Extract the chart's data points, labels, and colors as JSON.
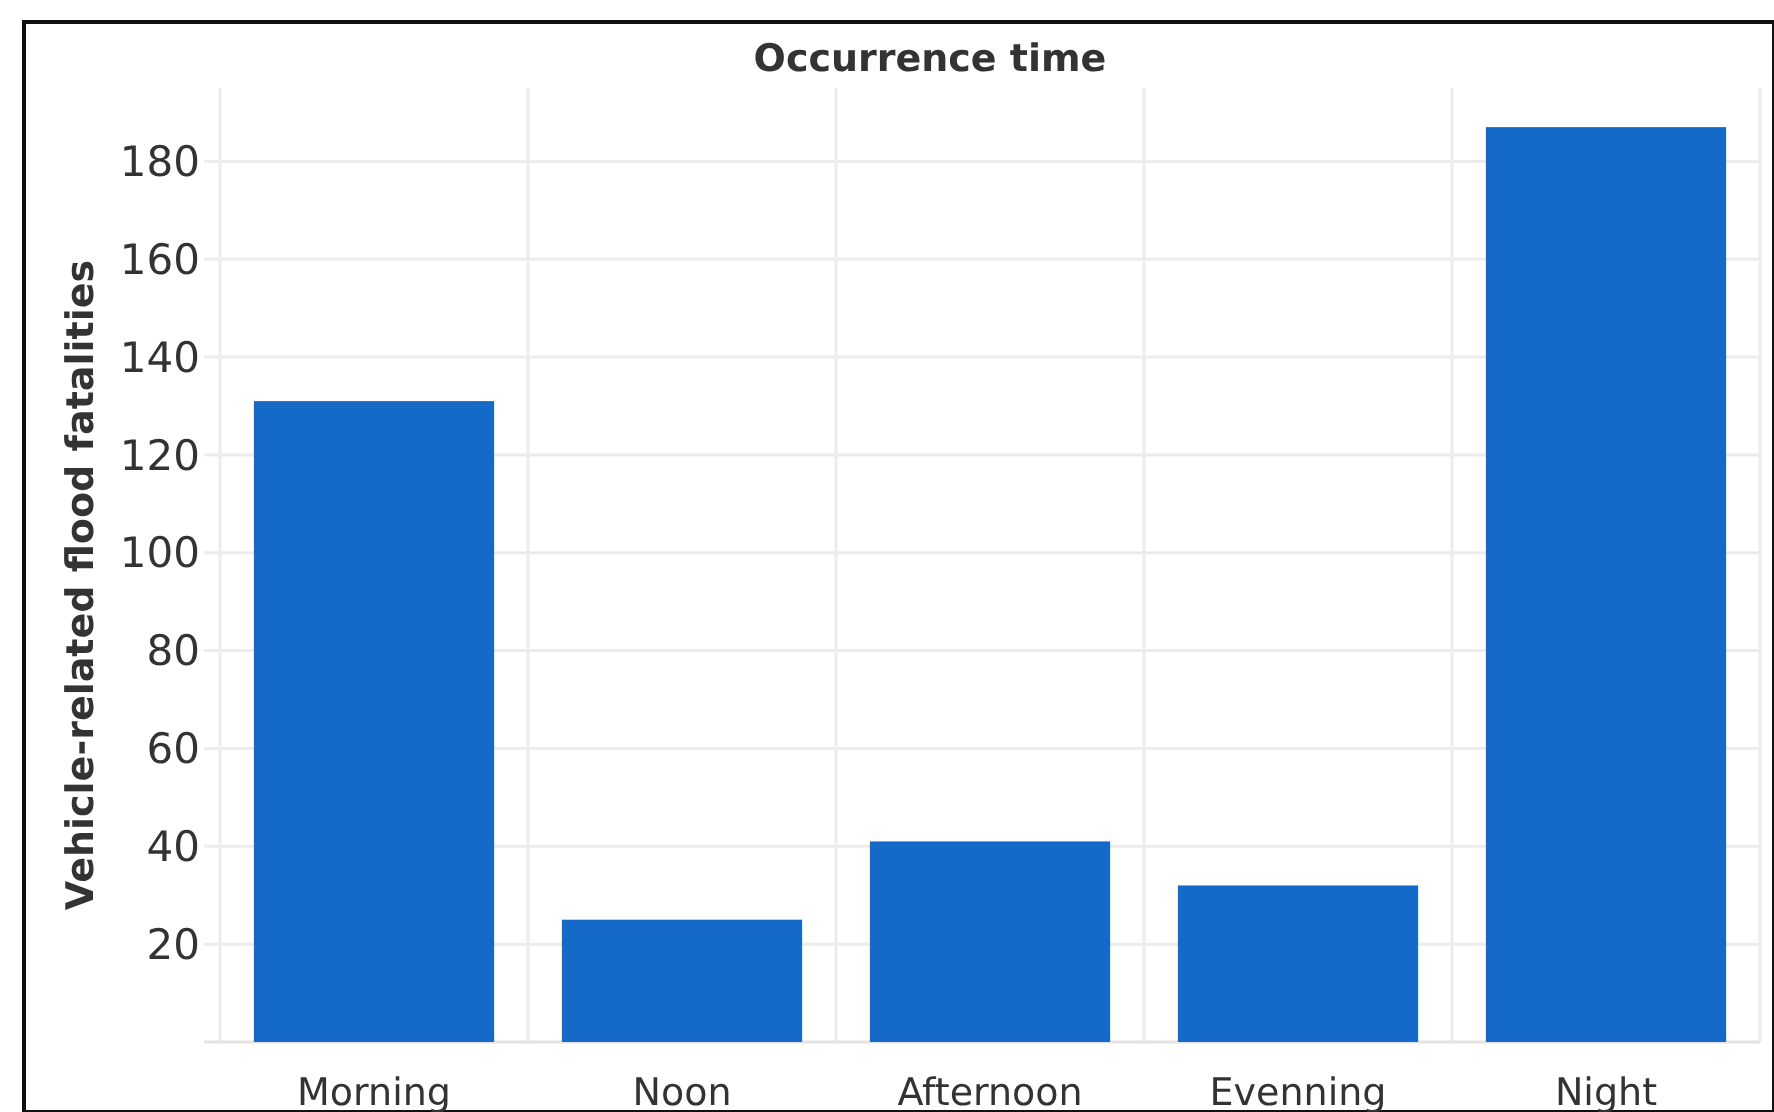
{
  "chart_data": {
    "type": "bar",
    "title": "Occurrence time",
    "ylabel": "Vehicle-related flood fatalities",
    "categories": [
      "Morning",
      "Noon",
      "Afternoon",
      "Evenning",
      "Night"
    ],
    "values": [
      131,
      25,
      41,
      32,
      187
    ],
    "color": "#1569c7",
    "ylim": [
      0,
      195
    ],
    "yticks": [
      20,
      40,
      60,
      80,
      100,
      120,
      140,
      160,
      180
    ],
    "grid": true
  }
}
